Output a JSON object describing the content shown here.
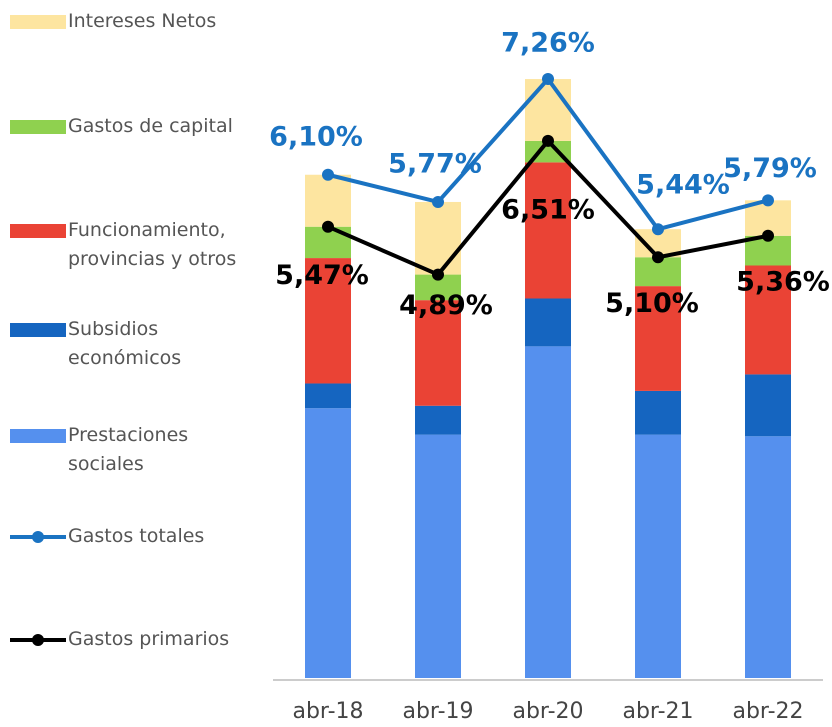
{
  "chart_data": {
    "type": "bar",
    "stacked": true,
    "categories": [
      "abr-18",
      "abr-19",
      "abr-20",
      "abr-21",
      "abr-22"
    ],
    "ylim": [
      0,
      8
    ],
    "series": [
      {
        "name": "Prestaciones sociales",
        "color": "#5590ee",
        "values": [
          3.27,
          2.95,
          4.02,
          2.95,
          2.93
        ]
      },
      {
        "name": "Subsidios económicos",
        "color": "#1565c0",
        "values": [
          0.3,
          0.35,
          0.58,
          0.53,
          0.75
        ]
      },
      {
        "name": "Funcionamiento, provincias y otros",
        "color": "#ea4335",
        "values": [
          1.52,
          1.28,
          1.65,
          1.27,
          1.32
        ]
      },
      {
        "name": "Gastos de capital",
        "color": "#8fd14f",
        "values": [
          0.38,
          0.31,
          0.26,
          0.35,
          0.36
        ]
      },
      {
        "name": "Intereses Netos",
        "color": "#fde5a0",
        "values": [
          0.63,
          0.88,
          0.75,
          0.34,
          0.43
        ]
      },
      {
        "name": "Gastos totales",
        "type": "line",
        "color": "#1a73c2",
        "values": [
          6.1,
          5.77,
          7.26,
          5.44,
          5.79
        ],
        "value_labels": [
          "6,10%",
          "5,77%",
          "7,26%",
          "5,44%",
          "5,79%"
        ]
      },
      {
        "name": "Gastos primarios",
        "type": "line",
        "color": "#000000",
        "values": [
          5.47,
          4.89,
          6.51,
          5.1,
          5.36
        ],
        "value_labels": [
          "5,47%",
          "4,89%",
          "6,51%",
          "5,10%",
          "5,36%"
        ]
      }
    ]
  }
}
